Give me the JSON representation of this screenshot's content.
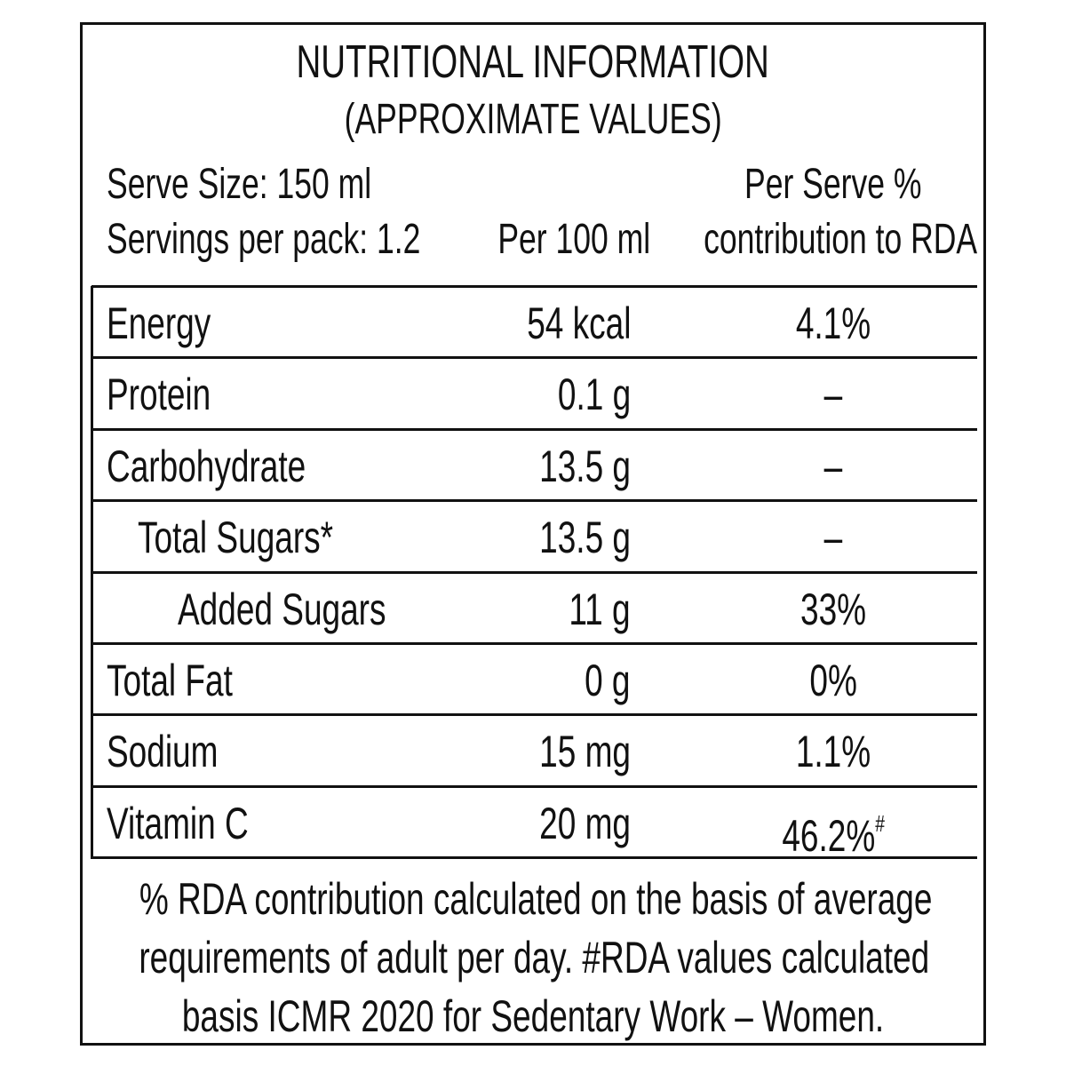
{
  "header": {
    "title": "NUTRITIONAL INFORMATION",
    "subtitle": "(APPROXIMATE VALUES)",
    "serve_size": "Serve Size: 150 ml",
    "servings": "Servings per pack: 1.2",
    "col_per100": "Per 100 ml",
    "col_rda_1": "Per Serve %",
    "col_rda_2": "contribution to RDA"
  },
  "table": {
    "rows": [
      [
        "Energy",
        "54 kcal",
        "4.1%"
      ],
      [
        "Protein",
        "0.1 g",
        "–"
      ],
      [
        "Carbohydrate",
        "13.5 g",
        "–"
      ],
      [
        "Total Sugars*",
        "13.5 g",
        "–"
      ],
      [
        "Added Sugars",
        "11 g",
        "33%"
      ],
      [
        "Total Fat",
        "0 g",
        "0%"
      ],
      [
        "Sodium",
        "15 mg",
        "1.1%"
      ],
      [
        "Vitamin C",
        "20 mg",
        "46.2%",
        "#"
      ]
    ]
  },
  "footnote": {
    "lines": [
      "% RDA contribution calculated on the basis of average",
      "requirements of adult per day. #RDA values calculated",
      "basis ICMR 2020 for Sedentary Work – Women."
    ]
  }
}
